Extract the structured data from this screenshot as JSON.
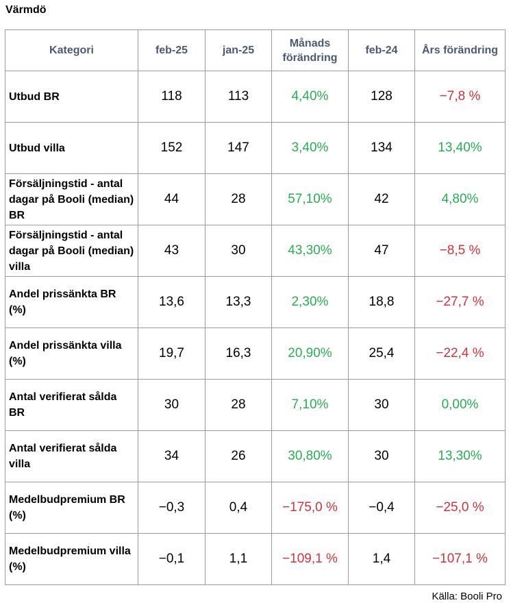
{
  "title": "Värmdö",
  "headers": {
    "kategori": "Kategori",
    "feb25": "feb-25",
    "jan25": "jan-25",
    "manads": "Månads förändring",
    "feb24": "feb-24",
    "ars": "Års förändring"
  },
  "rows": [
    {
      "kategori": "Utbud BR",
      "feb25": "118",
      "jan25": "113",
      "manads": "4,40%",
      "feb24": "128",
      "ars": "−7,8 %"
    },
    {
      "kategori": "Utbud villa",
      "feb25": "152",
      "jan25": "147",
      "manads": "3,40%",
      "feb24": "134",
      "ars": "13,40%"
    },
    {
      "kategori": "Försäljningstid - antal dagar på Booli (median) BR",
      "feb25": "44",
      "jan25": "28",
      "manads": "57,10%",
      "feb24": "42",
      "ars": "4,80%"
    },
    {
      "kategori": "Försäljningstid - antal dagar på Booli (median) villa",
      "feb25": "43",
      "jan25": "30",
      "manads": "43,30%",
      "feb24": "47",
      "ars": "−8,5 %"
    },
    {
      "kategori": "Andel prissänkta BR (%)",
      "feb25": "13,6",
      "jan25": "13,3",
      "manads": "2,30%",
      "feb24": "18,8",
      "ars": "−27,7 %"
    },
    {
      "kategori": "Andel prissänkta villa (%)",
      "feb25": "19,7",
      "jan25": "16,3",
      "manads": "20,90%",
      "feb24": "25,4",
      "ars": "−22,4 %"
    },
    {
      "kategori": "Antal verifierat sålda BR",
      "feb25": "30",
      "jan25": "28",
      "manads": "7,10%",
      "feb24": "30",
      "ars": "0,00%"
    },
    {
      "kategori": "Antal verifierat sålda villa",
      "feb25": "34",
      "jan25": "26",
      "manads": "30,80%",
      "feb24": "30",
      "ars": "13,30%"
    },
    {
      "kategori": "Medelbudpremium BR (%)",
      "feb25": "−0,3",
      "jan25": "0,4",
      "manads": "−175,0 %",
      "feb24": "−0,4",
      "ars": "−25,0 %"
    },
    {
      "kategori": "Medelbudpremium villa (%)",
      "feb25": "−0,1",
      "jan25": "1,1",
      "manads": "−109,1 %",
      "feb24": "1,4",
      "ars": "−107,1 %"
    }
  ],
  "colors": {
    "header_text": "#4a5a75",
    "positive": "#26b050",
    "negative": "#d13438"
  },
  "source": "Källa: Booli Pro"
}
